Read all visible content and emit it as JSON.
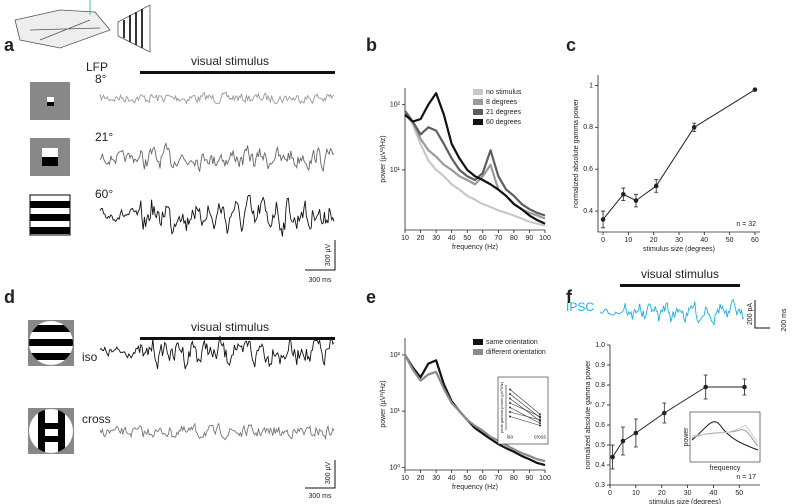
{
  "figure": {
    "panel_labels": [
      "a",
      "b",
      "c",
      "d",
      "e",
      "f"
    ],
    "a": {
      "recording": "LFP",
      "stimulus": "visual stimulus",
      "sizes": [
        "8°",
        "21°",
        "60°"
      ],
      "scale_y": "300 µV",
      "scale_x": "300 ms"
    },
    "d": {
      "stimulus": "visual stimulus",
      "conditions": [
        "iso",
        "cross"
      ],
      "scale_y": "300 µV",
      "scale_x": "300 ms"
    },
    "f": {
      "recording": "IPSC",
      "stimulus": "visual stimulus",
      "scale_y": "200 pA",
      "scale_x": "200 ms",
      "inset_ylabel": "power",
      "inset_xlabel": "frequency"
    }
  },
  "chart_data": [
    {
      "type": "line",
      "log_y": true,
      "xlabel": "frequency (Hz)",
      "ylabel": "power (µV²/Hz)",
      "x": [
        10,
        15,
        20,
        25,
        30,
        35,
        40,
        45,
        50,
        55,
        60,
        65,
        70,
        75,
        80,
        85,
        90,
        95,
        100
      ],
      "xlim": [
        10,
        100
      ],
      "xticks": [
        10,
        20,
        30,
        40,
        50,
        60,
        70,
        80,
        90,
        100
      ],
      "ylim": [
        1.2,
        180
      ],
      "yticks": [
        {
          "value": 10,
          "label": "10¹"
        },
        {
          "value": 100,
          "label": "10²"
        }
      ],
      "legend": "upper right",
      "series": [
        {
          "name": "no stimulus",
          "color": "#c8c8c8",
          "values": [
            80,
            50,
            25,
            14,
            10,
            8,
            6,
            5,
            4,
            3.5,
            3,
            2.7,
            2.4,
            2.2,
            2,
            1.8,
            1.6,
            1.5,
            1.4
          ]
        },
        {
          "name": "8 degrees",
          "color": "#9a9a9a",
          "values": [
            80,
            55,
            30,
            20,
            16,
            12,
            10,
            8,
            7,
            6,
            8,
            12,
            5,
            4,
            3,
            2.5,
            2.2,
            2,
            1.8
          ]
        },
        {
          "name": "21 degrees",
          "color": "#5e5e5e",
          "values": [
            80,
            55,
            35,
            45,
            40,
            25,
            15,
            10,
            8,
            7,
            9,
            20,
            8,
            5,
            4,
            3,
            2.5,
            2.2,
            2
          ]
        },
        {
          "name": "60 degrees",
          "color": "#111111",
          "values": [
            70,
            55,
            60,
            100,
            150,
            70,
            25,
            15,
            10,
            8,
            7,
            6,
            5,
            4,
            3,
            2.5,
            2,
            1.7,
            1.5
          ]
        }
      ]
    },
    {
      "type": "line",
      "xlabel": "stimulus size (degrees)",
      "ylabel": "normalized absolute gamma power",
      "annotation": "n = 32",
      "x": [
        0,
        8,
        13,
        21,
        36,
        60
      ],
      "xlim": [
        -2,
        62
      ],
      "xticks": [
        0,
        10,
        20,
        30,
        40,
        50,
        60
      ],
      "ylim": [
        0.3,
        1.05
      ],
      "yticks": [
        0.4,
        0.6,
        0.8,
        1
      ],
      "series": [
        {
          "color": "#222222",
          "values": [
            0.36,
            0.48,
            0.45,
            0.52,
            0.8,
            0.98
          ],
          "errors": [
            0.04,
            0.03,
            0.03,
            0.03,
            0.02,
            0
          ]
        }
      ]
    },
    {
      "type": "line",
      "log_y": true,
      "xlabel": "frequency (Hz)",
      "ylabel": "power (µV²/Hz)",
      "x": [
        10,
        15,
        20,
        25,
        30,
        35,
        40,
        45,
        50,
        55,
        60,
        65,
        70,
        75,
        80,
        85,
        90,
        95,
        100
      ],
      "xlim": [
        10,
        100
      ],
      "xticks": [
        10,
        20,
        30,
        40,
        50,
        60,
        70,
        80,
        90,
        100
      ],
      "ylim": [
        0.9,
        200
      ],
      "yticks": [
        {
          "value": 1,
          "label": "10⁰"
        },
        {
          "value": 10,
          "label": "10¹"
        },
        {
          "value": 100,
          "label": "10²"
        }
      ],
      "legend": "upper right",
      "series": [
        {
          "name": "same orientation",
          "color": "#111111",
          "values": [
            100,
            60,
            40,
            70,
            80,
            30,
            15,
            10,
            7,
            5,
            4,
            3.2,
            2.6,
            2.2,
            1.9,
            1.6,
            1.4,
            1.2,
            1.1
          ]
        },
        {
          "name": "different orientation",
          "color": "#8a8a8a",
          "values": [
            100,
            55,
            35,
            45,
            50,
            25,
            14,
            10,
            7,
            5.5,
            4.5,
            3.5,
            3,
            2.5,
            2.1,
            1.8,
            1.6,
            1.4,
            1.3
          ]
        }
      ]
    },
    {
      "type": "slope",
      "ylabel": "peak gamma power (µV²/Hz)",
      "categories": [
        "iso",
        "cross"
      ],
      "ylim": [
        0,
        200
      ],
      "pairs": [
        [
          180,
          70
        ],
        [
          160,
          55
        ],
        [
          140,
          40
        ],
        [
          120,
          60
        ],
        [
          100,
          30
        ],
        [
          80,
          45
        ],
        [
          60,
          20
        ]
      ],
      "color": "#333333"
    },
    {
      "type": "line",
      "xlabel": "stimulus size (degrees)",
      "ylabel": "normalized absolute gamma power",
      "annotation": "n = 17",
      "x": [
        1,
        5,
        10,
        21,
        37,
        52
      ],
      "xlim": [
        0,
        58
      ],
      "xticks": [
        0,
        10,
        20,
        30,
        40,
        50
      ],
      "ylim": [
        0.3,
        1.0
      ],
      "yticks": [
        0.3,
        0.4,
        0.5,
        0.6,
        0.7,
        0.8,
        0.9,
        {
          "value": 1,
          "label": "1.0"
        }
      ],
      "series": [
        {
          "color": "#222222",
          "values": [
            0.44,
            0.52,
            0.56,
            0.66,
            0.79,
            0.79
          ],
          "errors": [
            0.06,
            0.07,
            0.07,
            0.05,
            0.06,
            0.04
          ]
        }
      ]
    }
  ]
}
